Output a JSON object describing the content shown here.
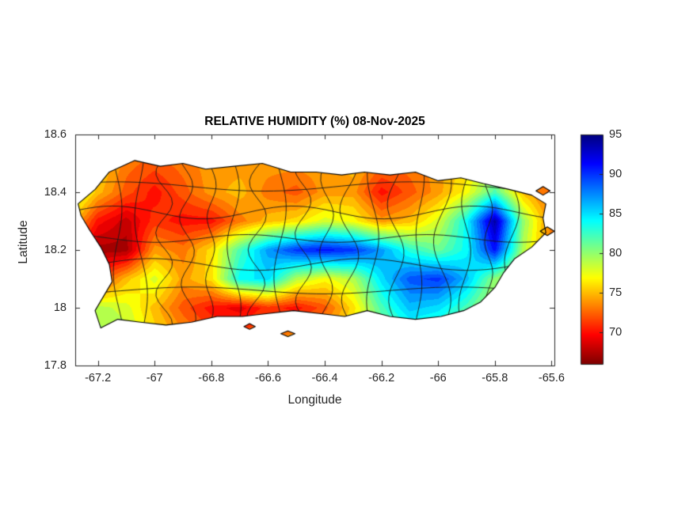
{
  "colors": {
    "background": "#ffffff",
    "axis": "#262626",
    "coastline": "#000000",
    "boundary": "#1a1a1a"
  },
  "chart_data": {
    "type": "heatmap",
    "title": "RELATIVE HUMIDITY (%) 08-Nov-2025",
    "xlabel": "Longitude",
    "ylabel": "Latitude",
    "units": "%",
    "xlim": [
      -67.28,
      -65.59
    ],
    "ylim": [
      17.8,
      18.6
    ],
    "xticks": [
      -67.2,
      -67,
      -66.8,
      -66.6,
      -66.4,
      -66.2,
      -66,
      -65.8,
      -65.6
    ],
    "xtick_labels": [
      "-67.2",
      "-67",
      "-66.8",
      "-66.6",
      "-66.4",
      "-66.2",
      "-66",
      "-65.8",
      "-65.6"
    ],
    "yticks": [
      17.8,
      18,
      18.2,
      18.4,
      18.6
    ],
    "ytick_labels": [
      "17.8",
      "18",
      "18.2",
      "18.4",
      "18.6"
    ],
    "colorbar": {
      "vmin": 66,
      "vmax": 95,
      "ticks": [
        70,
        75,
        80,
        85,
        90,
        95
      ],
      "tick_labels": [
        "70",
        "75",
        "80",
        "85",
        "90",
        "95"
      ],
      "colormap": "jet_reversed",
      "position": "right"
    },
    "grid": {
      "lons": [
        -67.3,
        -67.2,
        -67.1,
        -67.0,
        -66.9,
        -66.8,
        -66.7,
        -66.6,
        -66.5,
        -66.4,
        -66.3,
        -66.2,
        -66.1,
        -66.0,
        -65.9,
        -65.8,
        -65.7,
        -65.6
      ],
      "lats": [
        18.6,
        18.5,
        18.4,
        18.3,
        18.2,
        18.1,
        18.0,
        17.9
      ],
      "values": [
        [
          75,
          75,
          75,
          74,
          74,
          74,
          74,
          74,
          74,
          74,
          74,
          74,
          74,
          75,
          76,
          76,
          75,
          75
        ],
        [
          78,
          76,
          73,
          72,
          73,
          74,
          74,
          74,
          74,
          74,
          75,
          73,
          73,
          74,
          76,
          78,
          76,
          74
        ],
        [
          80,
          75,
          72,
          70,
          72,
          74,
          75,
          73,
          72,
          74,
          74,
          70,
          72,
          74,
          77,
          82,
          75,
          72
        ],
        [
          76,
          70,
          68,
          71,
          70,
          70,
          73,
          75,
          76,
          78,
          77,
          74,
          75,
          78,
          84,
          94,
          80,
          73
        ],
        [
          72,
          67,
          67,
          74,
          73,
          76,
          82,
          87,
          90,
          91,
          90,
          87,
          83,
          81,
          84,
          91,
          79,
          73
        ],
        [
          75,
          71,
          75,
          78,
          74,
          76,
          84,
          85,
          79,
          77,
          79,
          85,
          89,
          90,
          86,
          80,
          77,
          74
        ],
        [
          77,
          79,
          78,
          75,
          72,
          70,
          69,
          71,
          70,
          72,
          76,
          82,
          86,
          85,
          82,
          78,
          76,
          75
        ],
        [
          78,
          80,
          79,
          76,
          74,
          72,
          72,
          73,
          74,
          75,
          77,
          80,
          82,
          81,
          79,
          77,
          76,
          75
        ]
      ]
    },
    "island_outline": [
      [
        -67.16,
        18.47
      ],
      [
        -67.07,
        18.51
      ],
      [
        -66.98,
        18.49
      ],
      [
        -66.9,
        18.5
      ],
      [
        -66.82,
        18.48
      ],
      [
        -66.72,
        18.49
      ],
      [
        -66.62,
        18.5
      ],
      [
        -66.52,
        18.47
      ],
      [
        -66.43,
        18.47
      ],
      [
        -66.34,
        18.46
      ],
      [
        -66.26,
        18.47
      ],
      [
        -66.17,
        18.46
      ],
      [
        -66.08,
        18.47
      ],
      [
        -66.0,
        18.44
      ],
      [
        -65.92,
        18.45
      ],
      [
        -65.84,
        18.43
      ],
      [
        -65.75,
        18.41
      ],
      [
        -65.67,
        18.39
      ],
      [
        -65.62,
        18.36
      ],
      [
        -65.63,
        18.31
      ],
      [
        -65.62,
        18.26
      ],
      [
        -65.67,
        18.21
      ],
      [
        -65.73,
        18.17
      ],
      [
        -65.77,
        18.12
      ],
      [
        -65.8,
        18.07
      ],
      [
        -65.85,
        18.02
      ],
      [
        -65.91,
        17.99
      ],
      [
        -65.99,
        17.97
      ],
      [
        -66.08,
        17.96
      ],
      [
        -66.17,
        17.97
      ],
      [
        -66.25,
        17.99
      ],
      [
        -66.33,
        17.97
      ],
      [
        -66.42,
        17.98
      ],
      [
        -66.51,
        17.99
      ],
      [
        -66.6,
        17.98
      ],
      [
        -66.69,
        17.97
      ],
      [
        -66.78,
        17.97
      ],
      [
        -66.87,
        17.95
      ],
      [
        -66.96,
        17.94
      ],
      [
        -67.05,
        17.95
      ],
      [
        -67.13,
        17.96
      ],
      [
        -67.19,
        17.93
      ],
      [
        -67.21,
        17.99
      ],
      [
        -67.18,
        18.04
      ],
      [
        -67.15,
        18.09
      ],
      [
        -67.16,
        18.15
      ],
      [
        -67.19,
        18.21
      ],
      [
        -67.23,
        18.27
      ],
      [
        -67.26,
        18.32
      ],
      [
        -67.27,
        18.36
      ],
      [
        -67.21,
        18.41
      ],
      [
        -67.16,
        18.47
      ]
    ],
    "islets": [
      [
        [
          -65.655,
          18.405
        ],
        [
          -65.63,
          18.42
        ],
        [
          -65.605,
          18.405
        ],
        [
          -65.63,
          18.39
        ]
      ],
      [
        [
          -65.64,
          18.265
        ],
        [
          -65.615,
          18.28
        ],
        [
          -65.59,
          18.265
        ],
        [
          -65.615,
          18.25
        ]
      ],
      [
        [
          -66.555,
          17.91
        ],
        [
          -66.53,
          17.92
        ],
        [
          -66.505,
          17.91
        ],
        [
          -66.53,
          17.9
        ]
      ],
      [
        [
          -66.685,
          17.935
        ],
        [
          -66.665,
          17.945
        ],
        [
          -66.645,
          17.935
        ],
        [
          -66.665,
          17.925
        ]
      ]
    ],
    "boundaries": {
      "style": "municipal-approx",
      "vertical_count": 18,
      "horizontal_lats": [
        18.06,
        18.15,
        18.24,
        18.33,
        18.42
      ]
    }
  }
}
